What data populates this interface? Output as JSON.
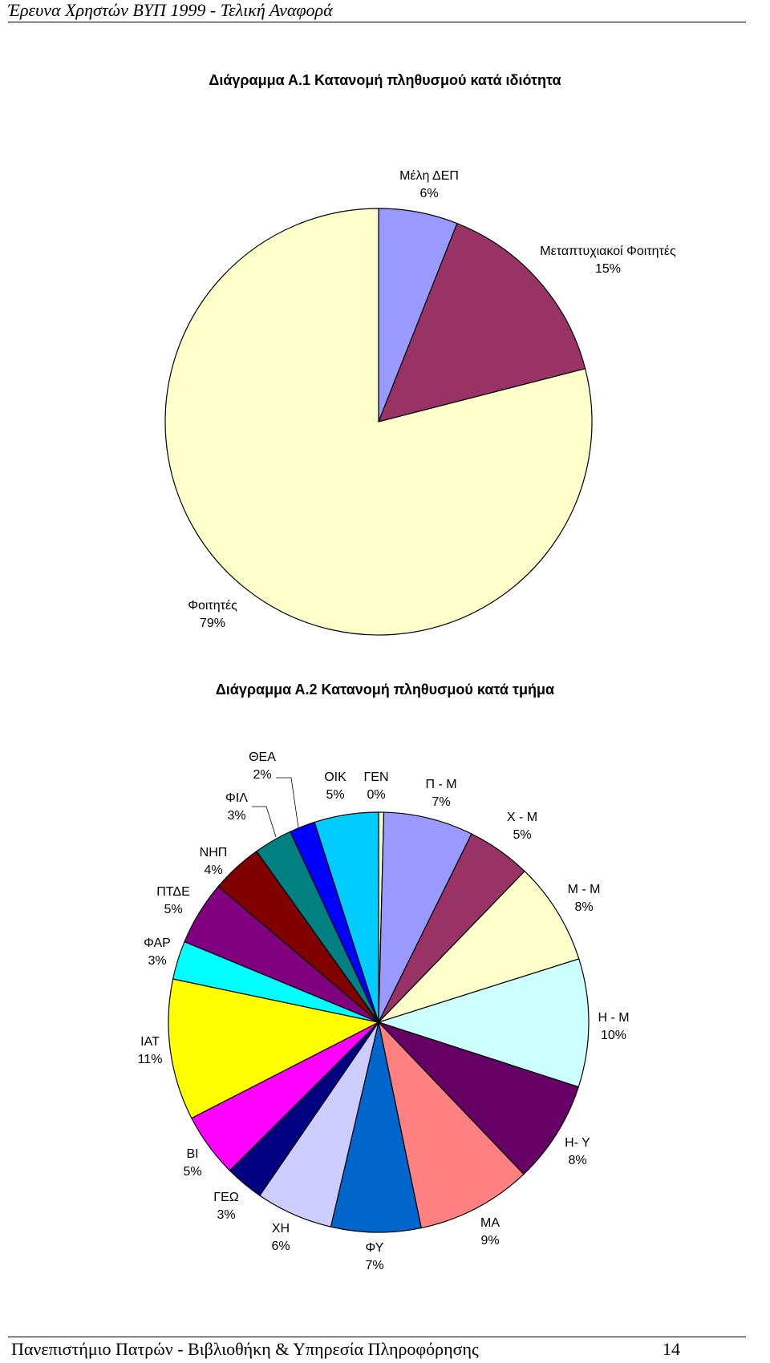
{
  "page": {
    "header": "Έρευνα Χρηστών ΒΥΠ 1999 - Τελική Αναφορά",
    "footer": "Πανεπιστήμιο Πατρών - Βιβλιοθήκη & Υπηρεσία Πληροφόρησης",
    "page_number": "14"
  },
  "chart_data": [
    {
      "type": "pie",
      "title": "Διάγραμμα Α.1 Κατανομή πληθυσμού κατά ιδιότητα",
      "slices": [
        {
          "label": "Μέλη ΔΕΠ",
          "value": 6,
          "value_label": "6%",
          "color": "#9999ff"
        },
        {
          "label": "Μεταπτυχιακοί Φοιτητές",
          "value": 15,
          "value_label": "15%",
          "color": "#993366"
        },
        {
          "label": "Φοιτητές",
          "value": 79,
          "value_label": "79%",
          "color": "#ffffcc"
        }
      ]
    },
    {
      "type": "pie",
      "title": "Διάγραμμα Α.2 Κατανομή πληθυσμού κατά τμήμα",
      "slices": [
        {
          "label": "ΓΕΝ",
          "value": 0.4,
          "value_label": "0%",
          "color": "#ffffcc"
        },
        {
          "label": "Π - Μ",
          "value": 7,
          "value_label": "7%",
          "color": "#9999ff"
        },
        {
          "label": "Χ - Μ",
          "value": 5,
          "value_label": "5%",
          "color": "#993366"
        },
        {
          "label": "Μ - Μ",
          "value": 8,
          "value_label": "8%",
          "color": "#ffffcc"
        },
        {
          "label": "Η - Μ",
          "value": 10,
          "value_label": "10%",
          "color": "#ccffff"
        },
        {
          "label": "Η- Υ",
          "value": 8,
          "value_label": "8%",
          "color": "#660066"
        },
        {
          "label": "ΜΑ",
          "value": 9,
          "value_label": "9%",
          "color": "#ff8080"
        },
        {
          "label": "ΦΥ",
          "value": 7,
          "value_label": "7%",
          "color": "#0066cc"
        },
        {
          "label": "ΧΗ",
          "value": 6,
          "value_label": "6%",
          "color": "#ccccff"
        },
        {
          "label": "ΓΕΩ",
          "value": 3,
          "value_label": "3%",
          "color": "#000080"
        },
        {
          "label": "ΒΙ",
          "value": 5,
          "value_label": "5%",
          "color": "#ff00ff"
        },
        {
          "label": "ΙΑΤ",
          "value": 11,
          "value_label": "11%",
          "color": "#ffff00"
        },
        {
          "label": "ΦΑΡ",
          "value": 3,
          "value_label": "3%",
          "color": "#00ffff"
        },
        {
          "label": "ΠΤΔΕ",
          "value": 5,
          "value_label": "5%",
          "color": "#800080"
        },
        {
          "label": "ΝΗΠ",
          "value": 4,
          "value_label": "4%",
          "color": "#800000"
        },
        {
          "label": "ΦΙΛ",
          "value": 3,
          "value_label": "3%",
          "color": "#008080"
        },
        {
          "label": "ΘΕΑ",
          "value": 2,
          "value_label": "2%",
          "color": "#0000ff"
        },
        {
          "label": "ΟΙΚ",
          "value": 5,
          "value_label": "5%",
          "color": "#00ccff"
        }
      ]
    }
  ]
}
